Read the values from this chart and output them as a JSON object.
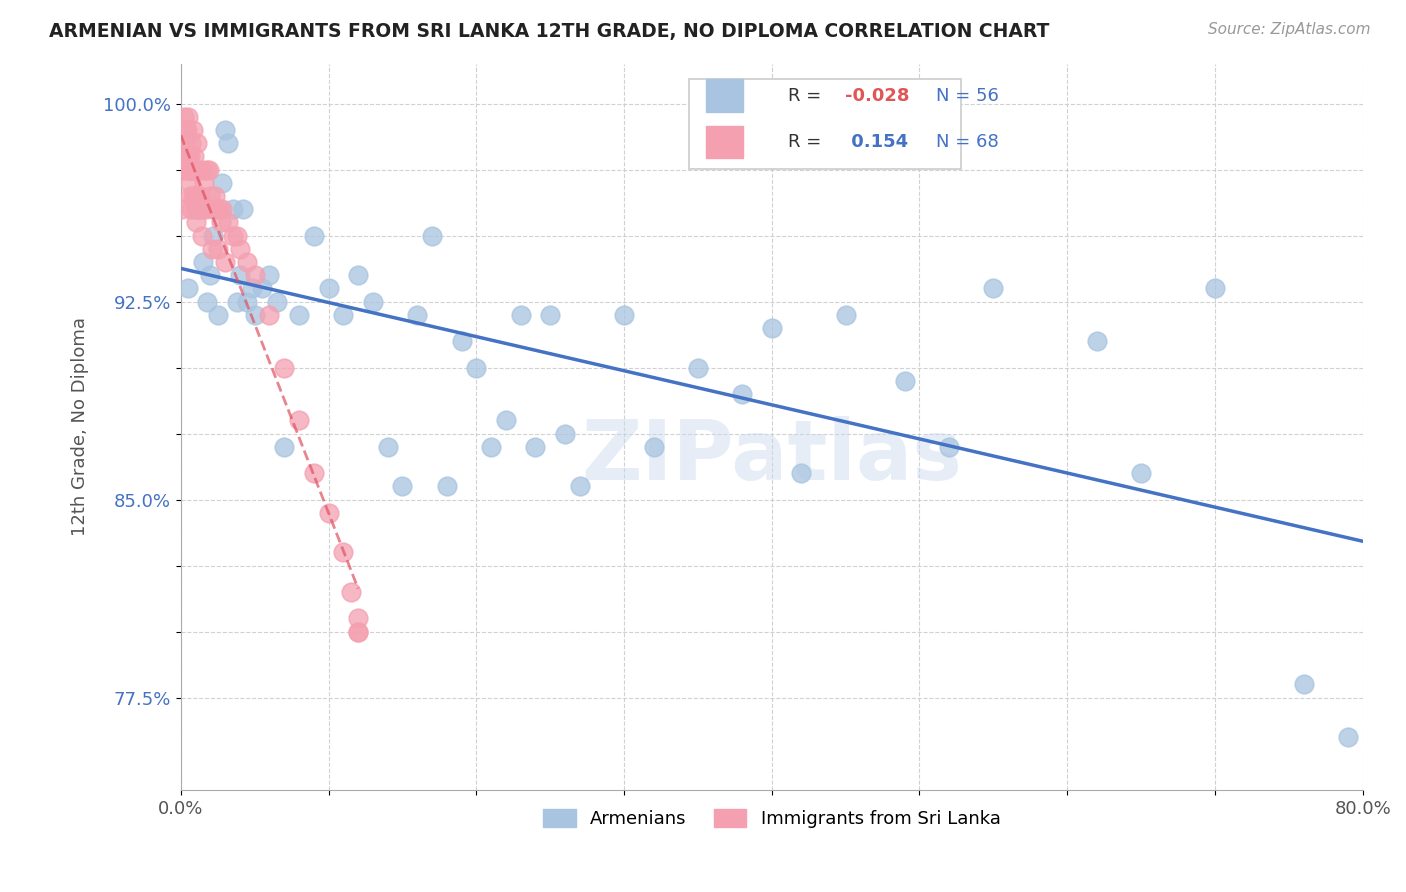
{
  "title": "ARMENIAN VS IMMIGRANTS FROM SRI LANKA 12TH GRADE, NO DIPLOMA CORRELATION CHART",
  "source_text": "Source: ZipAtlas.com",
  "ylabel": "12th Grade, No Diploma",
  "xlim": [
    0.0,
    0.8
  ],
  "ylim": [
    0.74,
    1.015
  ],
  "blue_color": "#a8c4e0",
  "pink_color": "#f4a0b0",
  "blue_line_color": "#4472c4",
  "pink_line_color": "#e05060",
  "watermark": "ZIPatlas",
  "blue_x": [
    0.005,
    0.01,
    0.015,
    0.018,
    0.02,
    0.022,
    0.025,
    0.028,
    0.03,
    0.032,
    0.035,
    0.038,
    0.04,
    0.042,
    0.045,
    0.048,
    0.05,
    0.055,
    0.06,
    0.065,
    0.07,
    0.08,
    0.09,
    0.1,
    0.11,
    0.12,
    0.13,
    0.14,
    0.15,
    0.16,
    0.17,
    0.18,
    0.19,
    0.2,
    0.21,
    0.22,
    0.23,
    0.24,
    0.25,
    0.26,
    0.27,
    0.3,
    0.32,
    0.35,
    0.38,
    0.4,
    0.42,
    0.45,
    0.49,
    0.52,
    0.55,
    0.62,
    0.65,
    0.7,
    0.76,
    0.79
  ],
  "blue_y": [
    0.93,
    0.96,
    0.94,
    0.925,
    0.935,
    0.95,
    0.92,
    0.97,
    0.99,
    0.985,
    0.96,
    0.925,
    0.935,
    0.96,
    0.925,
    0.93,
    0.92,
    0.93,
    0.935,
    0.925,
    0.87,
    0.92,
    0.95,
    0.93,
    0.92,
    0.935,
    0.925,
    0.87,
    0.855,
    0.92,
    0.95,
    0.855,
    0.91,
    0.9,
    0.87,
    0.88,
    0.92,
    0.87,
    0.92,
    0.875,
    0.855,
    0.92,
    0.87,
    0.9,
    0.89,
    0.915,
    0.86,
    0.92,
    0.895,
    0.87,
    0.93,
    0.91,
    0.86,
    0.93,
    0.78,
    0.76
  ],
  "pink_x": [
    0.001,
    0.002,
    0.002,
    0.003,
    0.003,
    0.004,
    0.004,
    0.004,
    0.005,
    0.005,
    0.005,
    0.006,
    0.006,
    0.006,
    0.006,
    0.007,
    0.007,
    0.007,
    0.008,
    0.008,
    0.008,
    0.009,
    0.009,
    0.009,
    0.01,
    0.01,
    0.01,
    0.011,
    0.011,
    0.011,
    0.012,
    0.012,
    0.012,
    0.013,
    0.013,
    0.014,
    0.014,
    0.015,
    0.016,
    0.017,
    0.018,
    0.019,
    0.02,
    0.021,
    0.022,
    0.023,
    0.024,
    0.025,
    0.026,
    0.027,
    0.028,
    0.03,
    0.032,
    0.035,
    0.038,
    0.04,
    0.045,
    0.05,
    0.06,
    0.07,
    0.08,
    0.09,
    0.1,
    0.11,
    0.115,
    0.12,
    0.12,
    0.12
  ],
  "pink_y": [
    0.96,
    0.975,
    0.995,
    0.985,
    0.99,
    0.975,
    0.98,
    0.99,
    0.975,
    0.98,
    0.995,
    0.965,
    0.975,
    0.98,
    0.97,
    0.96,
    0.975,
    0.985,
    0.99,
    0.965,
    0.975,
    0.965,
    0.98,
    0.975,
    0.965,
    0.955,
    0.96,
    0.975,
    0.985,
    0.975,
    0.96,
    0.965,
    0.975,
    0.965,
    0.96,
    0.95,
    0.96,
    0.975,
    0.97,
    0.96,
    0.975,
    0.975,
    0.965,
    0.945,
    0.96,
    0.965,
    0.96,
    0.945,
    0.96,
    0.955,
    0.96,
    0.94,
    0.955,
    0.95,
    0.95,
    0.945,
    0.94,
    0.935,
    0.92,
    0.9,
    0.88,
    0.86,
    0.845,
    0.83,
    0.815,
    0.805,
    0.8,
    0.8
  ]
}
